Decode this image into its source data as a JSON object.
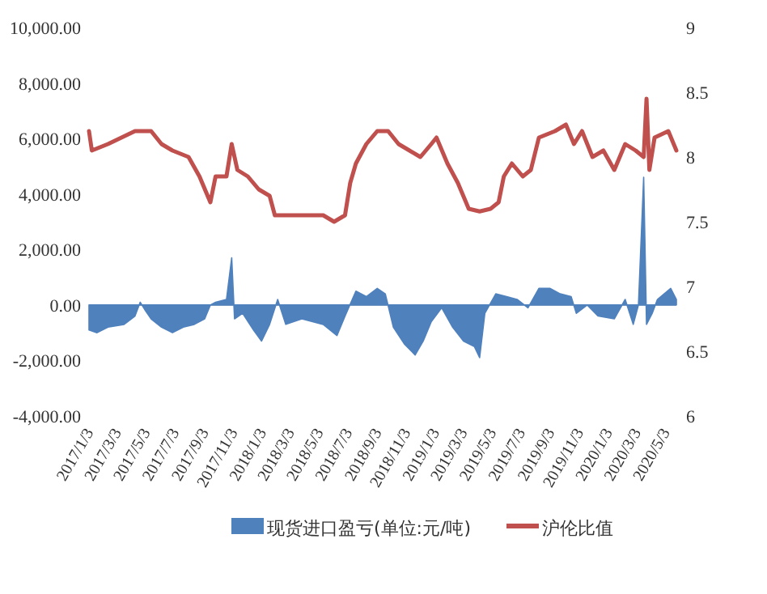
{
  "chart_data": {
    "type": "area",
    "legend": "bottom",
    "xlim": [
      "2017-01-03",
      "2020-05-26"
    ],
    "xticks": [
      {
        "value": "2017-01-03",
        "label": "2017/1/3"
      },
      {
        "value": "2017-03-03",
        "label": "2017/3/3"
      },
      {
        "value": "2017-05-03",
        "label": "2017/5/3"
      },
      {
        "value": "2017-07-03",
        "label": "2017/7/3"
      },
      {
        "value": "2017-09-03",
        "label": "2017/9/3"
      },
      {
        "value": "2017-11-03",
        "label": "2017/11/3"
      },
      {
        "value": "2018-01-03",
        "label": "2018/1/3"
      },
      {
        "value": "2018-03-03",
        "label": "2018/3/3"
      },
      {
        "value": "2018-05-03",
        "label": "2018/5/3"
      },
      {
        "value": "2018-07-03",
        "label": "2018/7/3"
      },
      {
        "value": "2018-09-03",
        "label": "2018/9/3"
      },
      {
        "value": "2018-11-03",
        "label": "2018/11/3"
      },
      {
        "value": "2019-01-03",
        "label": "2019/1/3"
      },
      {
        "value": "2019-03-03",
        "label": "2019/3/3"
      },
      {
        "value": "2019-05-03",
        "label": "2019/5/3"
      },
      {
        "value": "2019-07-03",
        "label": "2019/7/3"
      },
      {
        "value": "2019-09-03",
        "label": "2019/9/3"
      },
      {
        "value": "2019-11-03",
        "label": "2019/11/3"
      },
      {
        "value": "2020-01-03",
        "label": "2020/1/3"
      },
      {
        "value": "2020-03-03",
        "label": "2020/3/3"
      },
      {
        "value": "2020-05-03",
        "label": "2020/5/3"
      }
    ],
    "ylim": [
      -4000,
      10000
    ],
    "yticks": [
      {
        "value": -4000,
        "label": "-4,000.00"
      },
      {
        "value": -2000,
        "label": "-2,000.00"
      },
      {
        "value": 0,
        "label": "0.00"
      },
      {
        "value": 2000,
        "label": "2,000.00"
      },
      {
        "value": 4000,
        "label": "4,000.00"
      },
      {
        "value": 6000,
        "label": "6,000.00"
      },
      {
        "value": 8000,
        "label": "8,000.00"
      },
      {
        "value": 10000,
        "label": "10,000.00"
      }
    ],
    "y2lim": [
      6,
      9
    ],
    "y2ticks": [
      6,
      6.5,
      7,
      7.5,
      8,
      8.5,
      9
    ],
    "series": [
      {
        "name": "现货进口盈亏(单位:元/吨)",
        "color": "#4f81bd",
        "x": [
          "2017-01-03",
          "2017-01-20",
          "2017-02-12",
          "2017-03-18",
          "2017-04-10",
          "2017-04-21",
          "2017-05-02",
          "2017-05-14",
          "2017-06-05",
          "2017-06-28",
          "2017-07-21",
          "2017-08-13",
          "2017-09-04",
          "2017-09-16",
          "2017-09-27",
          "2017-10-20",
          "2017-10-31",
          "2017-11-06",
          "2017-11-23",
          "2017-12-16",
          "2018-01-02",
          "2018-01-19",
          "2018-02-05",
          "2018-02-22",
          "2018-03-28",
          "2018-05-12",
          "2018-06-10",
          "2018-06-27",
          "2018-07-20",
          "2018-08-11",
          "2018-09-03",
          "2018-09-20",
          "2018-10-07",
          "2018-10-30",
          "2018-11-22",
          "2018-12-09",
          "2018-12-26",
          "2019-01-17",
          "2019-02-09",
          "2019-03-04",
          "2019-03-27",
          "2019-04-07",
          "2019-04-18",
          "2019-05-11",
          "2019-06-03",
          "2019-06-25",
          "2019-07-18",
          "2019-08-10",
          "2019-09-02",
          "2019-09-24",
          "2019-10-17",
          "2019-10-28",
          "2019-11-20",
          "2019-12-13",
          "2020-01-16",
          "2020-02-08",
          "2020-02-25",
          "2020-03-07",
          "2020-03-18",
          "2020-03-24",
          "2020-04-05",
          "2020-04-16",
          "2020-05-14",
          "2020-05-26"
        ],
        "values": [
          -900,
          -1000,
          -800,
          -700,
          -400,
          100,
          -200,
          -500,
          -800,
          -1000,
          -800,
          -700,
          -500,
          0,
          100,
          200,
          1700,
          -500,
          -300,
          -900,
          -1300,
          -700,
          200,
          -700,
          -500,
          -700,
          -1100,
          -400,
          500,
          300,
          600,
          400,
          -800,
          -1400,
          -1800,
          -1300,
          -600,
          -100,
          -800,
          -1300,
          -1500,
          -1900,
          -300,
          400,
          300,
          200,
          -100,
          600,
          600,
          400,
          300,
          -300,
          0,
          -400,
          -500,
          200,
          -700,
          0,
          4600,
          -700,
          -300,
          200,
          600,
          200
        ]
      },
      {
        "name": "沪伦比值",
        "type": "line",
        "axis": "y2",
        "color": "#c0504d",
        "x": [
          "2017-01-03",
          "2017-01-09",
          "2017-02-12",
          "2017-04-10",
          "2017-05-14",
          "2017-06-05",
          "2017-06-28",
          "2017-08-01",
          "2017-08-24",
          "2017-09-16",
          "2017-09-27",
          "2017-10-20",
          "2017-10-31",
          "2017-11-12",
          "2017-12-04",
          "2017-12-27",
          "2018-01-19",
          "2018-01-30",
          "2018-02-22",
          "2018-03-28",
          "2018-05-12",
          "2018-06-04",
          "2018-06-27",
          "2018-07-08",
          "2018-07-20",
          "2018-08-11",
          "2018-09-03",
          "2018-09-26",
          "2018-10-18",
          "2018-11-10",
          "2018-12-03",
          "2018-12-26",
          "2019-01-06",
          "2019-01-29",
          "2019-02-20",
          "2019-03-15",
          "2019-04-07",
          "2019-04-30",
          "2019-05-17",
          "2019-05-28",
          "2019-06-14",
          "2019-07-07",
          "2019-07-24",
          "2019-08-10",
          "2019-09-13",
          "2019-10-06",
          "2019-10-23",
          "2019-11-09",
          "2019-12-01",
          "2019-12-24",
          "2020-01-16",
          "2020-02-08",
          "2020-03-01",
          "2020-03-18",
          "2020-03-24",
          "2020-03-30",
          "2020-04-10",
          "2020-05-09",
          "2020-05-26"
        ],
        "values": [
          8.2,
          8.05,
          8.1,
          8.2,
          8.2,
          8.1,
          8.05,
          8.0,
          7.85,
          7.65,
          7.85,
          7.85,
          8.1,
          7.9,
          7.85,
          7.75,
          7.7,
          7.55,
          7.55,
          7.55,
          7.55,
          7.5,
          7.55,
          7.8,
          7.95,
          8.1,
          8.2,
          8.2,
          8.1,
          8.05,
          8.0,
          8.1,
          8.15,
          7.95,
          7.8,
          7.6,
          7.58,
          7.6,
          7.65,
          7.85,
          7.95,
          7.85,
          7.9,
          8.15,
          8.2,
          8.25,
          8.1,
          8.2,
          8.0,
          8.05,
          7.9,
          8.1,
          8.05,
          8.0,
          8.45,
          7.9,
          8.15,
          8.2,
          8.05
        ]
      }
    ]
  }
}
